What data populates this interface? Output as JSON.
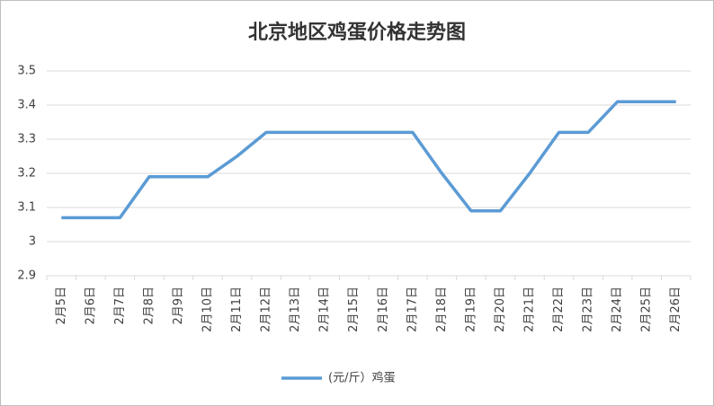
{
  "chart_data": {
    "type": "line",
    "title": "北京地区鸡蛋价格走势图",
    "categories": [
      "2月5日",
      "2月6日",
      "2月7日",
      "2月8日",
      "2月9日",
      "2月10日",
      "2月11日",
      "2月12日",
      "2月13日",
      "2月14日",
      "2月15日",
      "2月16日",
      "2月17日",
      "2月18日",
      "2月19日",
      "2月20日",
      "2月21日",
      "2月22日",
      "2月23日",
      "2月24日",
      "2月25日",
      "2月26日"
    ],
    "series": [
      {
        "name": "(元/斤）鸡蛋",
        "color": "#5b9bd5",
        "values": [
          3.07,
          3.07,
          3.07,
          3.19,
          3.19,
          3.19,
          3.25,
          3.32,
          3.32,
          3.32,
          3.32,
          3.32,
          3.32,
          3.2,
          3.09,
          3.09,
          3.2,
          3.32,
          3.32,
          3.41,
          3.41,
          3.41
        ]
      }
    ],
    "ylim": [
      2.9,
      3.5
    ],
    "yticks": [
      2.9,
      3,
      3.1,
      3.2,
      3.3,
      3.4,
      3.5
    ],
    "grid": true,
    "legend": "bottom"
  }
}
